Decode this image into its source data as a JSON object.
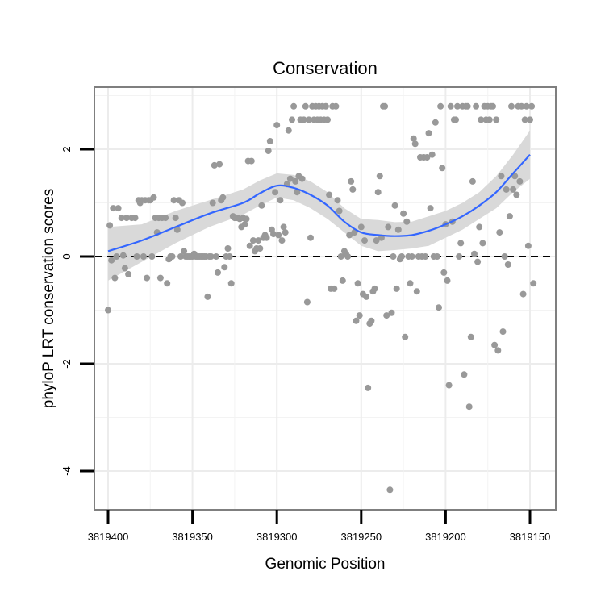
{
  "chart_data": {
    "type": "scatter",
    "title": "Conservation",
    "xlabel": "Genomic Position",
    "ylabel": "phyloP LRT conservation scores",
    "x_reversed": true,
    "xlim": [
      3819400,
      3819150
    ],
    "ylim": [
      -4.7,
      3.0
    ],
    "x_ticks": [
      3819400,
      3819350,
      3819300,
      3819250,
      3819200,
      3819150
    ],
    "x_tick_labels": [
      "3819400",
      "3819350",
      "3819300",
      "3819250",
      "3819200",
      "3819150"
    ],
    "y_ticks": [
      2,
      0,
      -2,
      -4
    ],
    "y_tick_labels": [
      "2",
      "0",
      "-2",
      "-4"
    ],
    "reference_line": {
      "y": 0,
      "style": "dashed"
    },
    "point_color": "#999999",
    "smooth_color": "#3366ff",
    "ribbon_color": "#d9d9d9",
    "points": [
      {
        "x": 3819400,
        "y": -1.0
      },
      {
        "x": 3819399,
        "y": 0.58
      },
      {
        "x": 3819398,
        "y": -0.07
      },
      {
        "x": 3819397,
        "y": 0.9
      },
      {
        "x": 3819396,
        "y": -0.4
      },
      {
        "x": 3819395,
        "y": 0.0
      },
      {
        "x": 3819394,
        "y": 0.9
      },
      {
        "x": 3819392,
        "y": 0.72
      },
      {
        "x": 3819391,
        "y": 0.02
      },
      {
        "x": 3819390,
        "y": -0.22
      },
      {
        "x": 3819389,
        "y": 0.72
      },
      {
        "x": 3819388,
        "y": -0.33
      },
      {
        "x": 3819386,
        "y": 0.72
      },
      {
        "x": 3819384,
        "y": 0.72
      },
      {
        "x": 3819383,
        "y": 0.0
      },
      {
        "x": 3819382,
        "y": 1.05
      },
      {
        "x": 3819381,
        "y": 1.0
      },
      {
        "x": 3819380,
        "y": 1.05
      },
      {
        "x": 3819379,
        "y": 0.0
      },
      {
        "x": 3819378,
        "y": 1.05
      },
      {
        "x": 3819377,
        "y": -0.4
      },
      {
        "x": 3819376,
        "y": 1.05
      },
      {
        "x": 3819375,
        "y": 1.05
      },
      {
        "x": 3819374,
        "y": 0.0
      },
      {
        "x": 3819373,
        "y": 1.1
      },
      {
        "x": 3819372,
        "y": 0.72
      },
      {
        "x": 3819371,
        "y": 0.45
      },
      {
        "x": 3819370,
        "y": 0.72
      },
      {
        "x": 3819369,
        "y": -0.4
      },
      {
        "x": 3819368,
        "y": 0.72
      },
      {
        "x": 3819366,
        "y": 0.72
      },
      {
        "x": 3819365,
        "y": -0.5
      },
      {
        "x": 3819364,
        "y": -0.05
      },
      {
        "x": 3819363,
        "y": 0.0
      },
      {
        "x": 3819362,
        "y": 0.0
      },
      {
        "x": 3819361,
        "y": 1.05
      },
      {
        "x": 3819360,
        "y": 0.72
      },
      {
        "x": 3819359,
        "y": 0.5
      },
      {
        "x": 3819358,
        "y": 1.05
      },
      {
        "x": 3819357,
        "y": 0.0
      },
      {
        "x": 3819356,
        "y": 1.0
      },
      {
        "x": 3819355,
        "y": 0.1
      },
      {
        "x": 3819354,
        "y": 0.0
      },
      {
        "x": 3819353,
        "y": 0.0
      },
      {
        "x": 3819352,
        "y": 0.0
      },
      {
        "x": 3819351,
        "y": 0.0
      },
      {
        "x": 3819350,
        "y": 0.0
      },
      {
        "x": 3819349,
        "y": 0.05
      },
      {
        "x": 3819348,
        "y": 0.0
      },
      {
        "x": 3819347,
        "y": 0.0
      },
      {
        "x": 3819346,
        "y": 0.0
      },
      {
        "x": 3819345,
        "y": 0.0
      },
      {
        "x": 3819344,
        "y": 0.0
      },
      {
        "x": 3819343,
        "y": 0.0
      },
      {
        "x": 3819342,
        "y": 0.0
      },
      {
        "x": 3819341,
        "y": -0.75
      },
      {
        "x": 3819340,
        "y": 0.0
      },
      {
        "x": 3819339,
        "y": 0.0
      },
      {
        "x": 3819338,
        "y": 1.0
      },
      {
        "x": 3819337,
        "y": 1.7
      },
      {
        "x": 3819336,
        "y": 0.0
      },
      {
        "x": 3819335,
        "y": -0.3
      },
      {
        "x": 3819334,
        "y": 1.72
      },
      {
        "x": 3819333,
        "y": 1.05
      },
      {
        "x": 3819332,
        "y": 1.1
      },
      {
        "x": 3819331,
        "y": -0.2
      },
      {
        "x": 3819330,
        "y": 0.0
      },
      {
        "x": 3819329,
        "y": 0.15
      },
      {
        "x": 3819328,
        "y": 0.0
      },
      {
        "x": 3819327,
        "y": -0.5
      },
      {
        "x": 3819326,
        "y": 0.75
      },
      {
        "x": 3819325,
        "y": 0.72
      },
      {
        "x": 3819324,
        "y": 0.72
      },
      {
        "x": 3819323,
        "y": 0.72
      },
      {
        "x": 3819322,
        "y": 0.7
      },
      {
        "x": 3819321,
        "y": 0.55
      },
      {
        "x": 3819320,
        "y": 0.72
      },
      {
        "x": 3819319,
        "y": 0.6
      },
      {
        "x": 3819318,
        "y": 0.7
      },
      {
        "x": 3819317,
        "y": 1.78
      },
      {
        "x": 3819316,
        "y": 0.2
      },
      {
        "x": 3819315,
        "y": 1.78
      },
      {
        "x": 3819314,
        "y": 0.3
      },
      {
        "x": 3819313,
        "y": 0.1
      },
      {
        "x": 3819312,
        "y": 0.15
      },
      {
        "x": 3819311,
        "y": 0.3
      },
      {
        "x": 3819310,
        "y": 0.15
      },
      {
        "x": 3819309,
        "y": 0.95
      },
      {
        "x": 3819308,
        "y": 0.35
      },
      {
        "x": 3819307,
        "y": 0.4
      },
      {
        "x": 3819306,
        "y": 0.35
      },
      {
        "x": 3819305,
        "y": 1.97
      },
      {
        "x": 3819304,
        "y": 2.15
      },
      {
        "x": 3819303,
        "y": 0.5
      },
      {
        "x": 3819302,
        "y": 0.42
      },
      {
        "x": 3819301,
        "y": 1.2
      },
      {
        "x": 3819300,
        "y": 2.45
      },
      {
        "x": 3819299,
        "y": 0.4
      },
      {
        "x": 3819298,
        "y": 1.05
      },
      {
        "x": 3819297,
        "y": 0.3
      },
      {
        "x": 3819296,
        "y": 0.55
      },
      {
        "x": 3819295,
        "y": 0.45
      },
      {
        "x": 3819294,
        "y": 1.35
      },
      {
        "x": 3819293,
        "y": 2.35
      },
      {
        "x": 3819292,
        "y": 1.45
      },
      {
        "x": 3819291,
        "y": 2.55
      },
      {
        "x": 3819290,
        "y": 2.8
      },
      {
        "x": 3819289,
        "y": 1.4
      },
      {
        "x": 3819288,
        "y": 1.2
      },
      {
        "x": 3819287,
        "y": 1.5
      },
      {
        "x": 3819286,
        "y": 2.55
      },
      {
        "x": 3819285,
        "y": 1.45
      },
      {
        "x": 3819284,
        "y": 2.55
      },
      {
        "x": 3819283,
        "y": 2.8
      },
      {
        "x": 3819282,
        "y": -0.85
      },
      {
        "x": 3819281,
        "y": 2.55
      },
      {
        "x": 3819280,
        "y": 0.35
      },
      {
        "x": 3819279,
        "y": 2.8
      },
      {
        "x": 3819278,
        "y": 2.55
      },
      {
        "x": 3819277,
        "y": 2.8
      },
      {
        "x": 3819276,
        "y": 2.55
      },
      {
        "x": 3819275,
        "y": 2.8
      },
      {
        "x": 3819274,
        "y": 2.55
      },
      {
        "x": 3819273,
        "y": 2.8
      },
      {
        "x": 3819272,
        "y": 2.55
      },
      {
        "x": 3819271,
        "y": 2.8
      },
      {
        "x": 3819270,
        "y": 2.55
      },
      {
        "x": 3819269,
        "y": 1.15
      },
      {
        "x": 3819268,
        "y": -0.6
      },
      {
        "x": 3819267,
        "y": 2.8
      },
      {
        "x": 3819266,
        "y": -0.6
      },
      {
        "x": 3819265,
        "y": 2.8
      },
      {
        "x": 3819264,
        "y": 1.05
      },
      {
        "x": 3819263,
        "y": 0.85
      },
      {
        "x": 3819262,
        "y": 0.0
      },
      {
        "x": 3819261,
        "y": -0.45
      },
      {
        "x": 3819260,
        "y": 0.1
      },
      {
        "x": 3819259,
        "y": 0.05
      },
      {
        "x": 3819258,
        "y": 0.0
      },
      {
        "x": 3819257,
        "y": 0.4
      },
      {
        "x": 3819256,
        "y": 1.4
      },
      {
        "x": 3819255,
        "y": 1.25
      },
      {
        "x": 3819254,
        "y": 0.45
      },
      {
        "x": 3819253,
        "y": -1.2
      },
      {
        "x": 3819252,
        "y": -0.5
      },
      {
        "x": 3819251,
        "y": -1.1
      },
      {
        "x": 3819250,
        "y": 0.55
      },
      {
        "x": 3819249,
        "y": -0.7
      },
      {
        "x": 3819248,
        "y": 0.3
      },
      {
        "x": 3819247,
        "y": -0.75
      },
      {
        "x": 3819246,
        "y": -2.45
      },
      {
        "x": 3819245,
        "y": -1.25
      },
      {
        "x": 3819244,
        "y": -1.2
      },
      {
        "x": 3819243,
        "y": -0.65
      },
      {
        "x": 3819242,
        "y": -0.6
      },
      {
        "x": 3819241,
        "y": 0.3
      },
      {
        "x": 3819240,
        "y": 1.2
      },
      {
        "x": 3819239,
        "y": 1.5
      },
      {
        "x": 3819238,
        "y": 0.35
      },
      {
        "x": 3819237,
        "y": 2.8
      },
      {
        "x": 3819236,
        "y": 2.8
      },
      {
        "x": 3819235,
        "y": -1.1
      },
      {
        "x": 3819234,
        "y": 0.55
      },
      {
        "x": 3819233,
        "y": -4.35
      },
      {
        "x": 3819232,
        "y": -1.05
      },
      {
        "x": 3819231,
        "y": 0.0
      },
      {
        "x": 3819230,
        "y": 0.95
      },
      {
        "x": 3819229,
        "y": -0.6
      },
      {
        "x": 3819228,
        "y": 0.5
      },
      {
        "x": 3819227,
        "y": -0.05
      },
      {
        "x": 3819226,
        "y": 0.0
      },
      {
        "x": 3819225,
        "y": 0.8
      },
      {
        "x": 3819224,
        "y": -1.5
      },
      {
        "x": 3819223,
        "y": 0.65
      },
      {
        "x": 3819222,
        "y": 0.0
      },
      {
        "x": 3819221,
        "y": -0.5
      },
      {
        "x": 3819220,
        "y": 0.0
      },
      {
        "x": 3819219,
        "y": 2.2
      },
      {
        "x": 3819218,
        "y": 2.1
      },
      {
        "x": 3819217,
        "y": -0.65
      },
      {
        "x": 3819216,
        "y": 0.0
      },
      {
        "x": 3819215,
        "y": 1.85
      },
      {
        "x": 3819214,
        "y": 0.0
      },
      {
        "x": 3819213,
        "y": 1.85
      },
      {
        "x": 3819212,
        "y": 0.0
      },
      {
        "x": 3819211,
        "y": 1.85
      },
      {
        "x": 3819210,
        "y": 2.3
      },
      {
        "x": 3819209,
        "y": 0.9
      },
      {
        "x": 3819208,
        "y": 1.9
      },
      {
        "x": 3819207,
        "y": 0.0
      },
      {
        "x": 3819206,
        "y": 2.5
      },
      {
        "x": 3819205,
        "y": 0.0
      },
      {
        "x": 3819204,
        "y": -0.95
      },
      {
        "x": 3819203,
        "y": 2.8
      },
      {
        "x": 3819202,
        "y": 1.65
      },
      {
        "x": 3819201,
        "y": -0.3
      },
      {
        "x": 3819200,
        "y": 0.6
      },
      {
        "x": 3819199,
        "y": -0.45
      },
      {
        "x": 3819198,
        "y": -2.4
      },
      {
        "x": 3819197,
        "y": 2.8
      },
      {
        "x": 3819196,
        "y": 0.65
      },
      {
        "x": 3819195,
        "y": 2.55
      },
      {
        "x": 3819194,
        "y": 2.55
      },
      {
        "x": 3819193,
        "y": 2.8
      },
      {
        "x": 3819192,
        "y": 0.0
      },
      {
        "x": 3819191,
        "y": 0.25
      },
      {
        "x": 3819190,
        "y": 2.8
      },
      {
        "x": 3819189,
        "y": -2.2
      },
      {
        "x": 3819188,
        "y": 2.8
      },
      {
        "x": 3819187,
        "y": 2.8
      },
      {
        "x": 3819186,
        "y": -2.8
      },
      {
        "x": 3819185,
        "y": -1.5
      },
      {
        "x": 3819184,
        "y": 1.4
      },
      {
        "x": 3819183,
        "y": 0.05
      },
      {
        "x": 3819182,
        "y": 2.8
      },
      {
        "x": 3819181,
        "y": -0.1
      },
      {
        "x": 3819180,
        "y": 0.55
      },
      {
        "x": 3819179,
        "y": 2.55
      },
      {
        "x": 3819178,
        "y": 0.25
      },
      {
        "x": 3819177,
        "y": 2.8
      },
      {
        "x": 3819176,
        "y": 2.55
      },
      {
        "x": 3819175,
        "y": 2.8
      },
      {
        "x": 3819174,
        "y": 2.55
      },
      {
        "x": 3819173,
        "y": 2.8
      },
      {
        "x": 3819172,
        "y": 2.8
      },
      {
        "x": 3819171,
        "y": -1.65
      },
      {
        "x": 3819170,
        "y": 2.55
      },
      {
        "x": 3819169,
        "y": -1.75
      },
      {
        "x": 3819168,
        "y": 0.45
      },
      {
        "x": 3819167,
        "y": 1.5
      },
      {
        "x": 3819166,
        "y": -1.4
      },
      {
        "x": 3819165,
        "y": 0.0
      },
      {
        "x": 3819164,
        "y": 1.25
      },
      {
        "x": 3819163,
        "y": -0.15
      },
      {
        "x": 3819162,
        "y": 0.75
      },
      {
        "x": 3819161,
        "y": 2.8
      },
      {
        "x": 3819160,
        "y": 1.25
      },
      {
        "x": 3819159,
        "y": 1.5
      },
      {
        "x": 3819158,
        "y": 1.15
      },
      {
        "x": 3819157,
        "y": 2.8
      },
      {
        "x": 3819156,
        "y": 1.4
      },
      {
        "x": 3819155,
        "y": 2.8
      },
      {
        "x": 3819154,
        "y": -0.7
      },
      {
        "x": 3819153,
        "y": 2.55
      },
      {
        "x": 3819152,
        "y": 2.8
      },
      {
        "x": 3819151,
        "y": 0.2
      },
      {
        "x": 3819150,
        "y": 2.55
      },
      {
        "x": 3819149,
        "y": 2.8
      },
      {
        "x": 3819148,
        "y": -0.5
      }
    ],
    "smooth": {
      "x": [
        3819400,
        3819380,
        3819360,
        3819340,
        3819320,
        3819310,
        3819300,
        3819290,
        3819280,
        3819270,
        3819260,
        3819250,
        3819240,
        3819230,
        3819220,
        3819210,
        3819200,
        3819190,
        3819180,
        3819170,
        3819160,
        3819150
      ],
      "y": [
        0.1,
        0.3,
        0.55,
        0.8,
        1.0,
        1.18,
        1.32,
        1.28,
        1.15,
        0.95,
        0.65,
        0.45,
        0.4,
        0.38,
        0.4,
        0.48,
        0.6,
        0.75,
        0.95,
        1.2,
        1.55,
        1.9
      ],
      "lower": [
        -0.45,
        -0.1,
        0.25,
        0.55,
        0.78,
        0.95,
        1.1,
        1.05,
        0.9,
        0.7,
        0.45,
        0.2,
        0.1,
        0.12,
        0.15,
        0.2,
        0.35,
        0.5,
        0.7,
        0.9,
        1.2,
        1.45
      ],
      "upper": [
        0.55,
        0.6,
        0.85,
        1.05,
        1.25,
        1.42,
        1.55,
        1.52,
        1.4,
        1.2,
        0.9,
        0.7,
        0.68,
        0.64,
        0.65,
        0.75,
        0.85,
        1.0,
        1.2,
        1.5,
        1.9,
        2.35
      ]
    }
  }
}
